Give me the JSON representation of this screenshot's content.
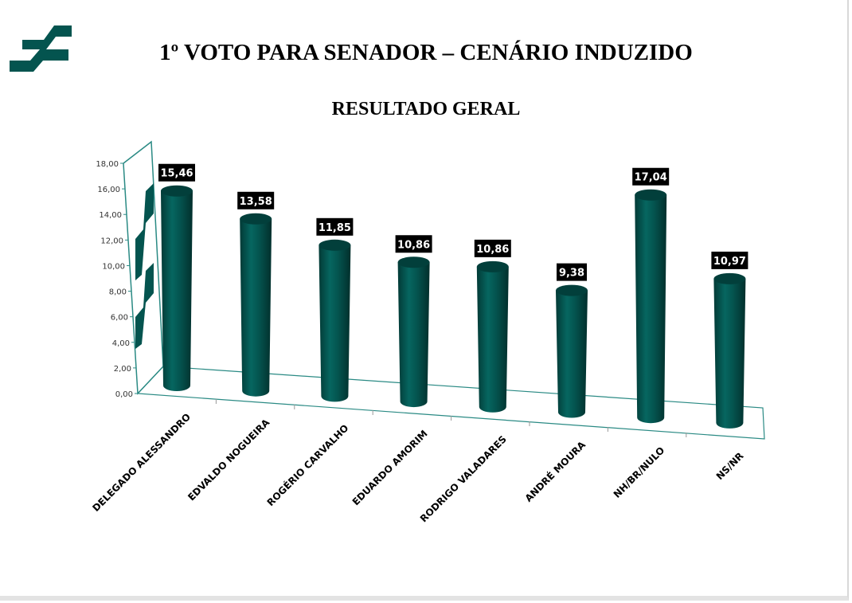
{
  "header": {
    "title": "1º VOTO PARA SENADOR – CENÁRIO INDUZIDO",
    "logo_icon": "company-logo-stripes"
  },
  "colors": {
    "bar": "#04544f",
    "bar_dark": "#023a36",
    "axis": "#2a8a84",
    "label_bg": "#000000"
  },
  "chart_data": {
    "type": "bar",
    "style": "3d-cylinder",
    "title": "RESULTADO GERAL",
    "xlabel": "",
    "ylabel": "",
    "ylim": [
      0,
      18
    ],
    "yticks": [
      "0,00",
      "2,00",
      "4,00",
      "6,00",
      "8,00",
      "10,00",
      "12,00",
      "14,00",
      "16,00",
      "18,00"
    ],
    "categories": [
      "DELEGADO ALESSANDRO",
      "EDVALDO NOGUEIRA",
      "ROGÉRIO CARVALHO",
      "EDUARDO AMORIM",
      "RODRIGO VALADARES",
      "ANDRÉ MOURA",
      "NH/BR/NULO",
      "NS/NR"
    ],
    "values": [
      15.46,
      13.58,
      11.85,
      10.86,
      10.86,
      9.38,
      17.04,
      10.97
    ],
    "data_labels": [
      "15,46",
      "13,58",
      "11,85",
      "10,86",
      "10,86",
      "9,38",
      "17,04",
      "10,97"
    ],
    "legend": "none",
    "grid": false
  }
}
